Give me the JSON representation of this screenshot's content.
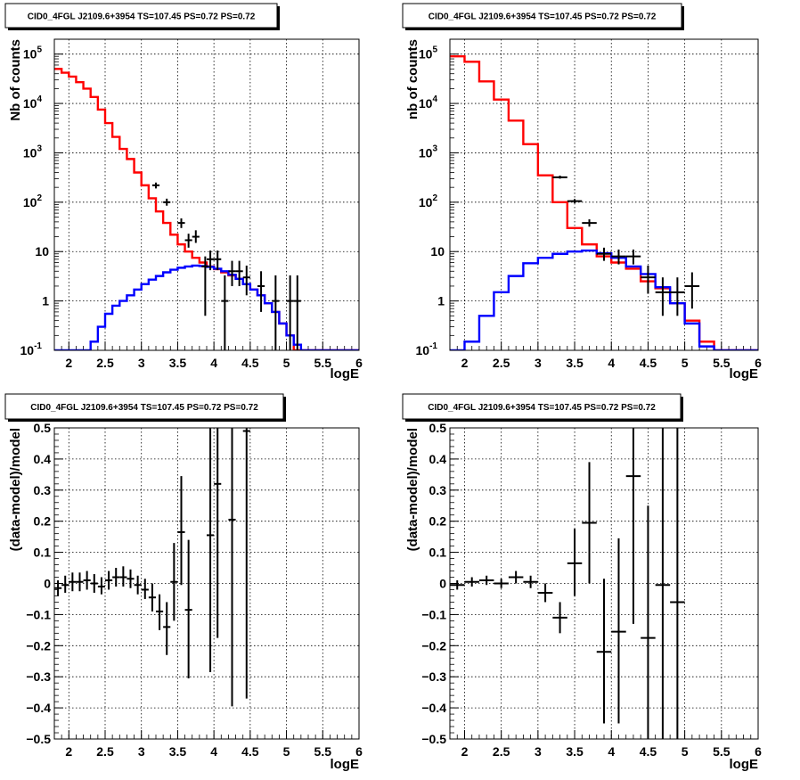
{
  "chart_data": [
    {
      "type": "line",
      "title": "CID0_4FGL J2109.6+3954 TS=107.45 PS=0.72 PS=0.72",
      "xlabel": "logE",
      "ylabel": "Nb of counts",
      "xlim": [
        1.8,
        6
      ],
      "ylim": [
        0.1,
        200000
      ],
      "ylog": true,
      "grid": true,
      "xticks": [
        "2",
        "2.5",
        "3",
        "3.5",
        "4",
        "4.5",
        "5",
        "5.5",
        "6"
      ],
      "yticks": [
        "10^-1",
        "1",
        "10",
        "10^2",
        "10^3",
        "10^4",
        "10^5"
      ],
      "bin_edges": [
        1.8,
        1.9,
        2.0,
        2.1,
        2.2,
        2.3,
        2.4,
        2.5,
        2.6,
        2.7,
        2.8,
        2.9,
        3.0,
        3.1,
        3.2,
        3.3,
        3.4,
        3.5,
        3.6,
        3.7,
        3.8,
        3.9,
        4.0,
        4.1,
        4.2,
        4.3,
        4.4,
        4.5,
        4.6,
        4.7,
        4.8,
        4.9,
        5.0,
        5.1,
        5.2,
        5.3,
        5.4,
        5.5,
        5.6,
        5.7,
        5.8,
        5.9,
        6.0
      ],
      "series": [
        {
          "color": "#ff0000",
          "style": "step",
          "values": [
            50000,
            42000,
            35000,
            27000,
            20000,
            13500,
            7500,
            4000,
            2100,
            1200,
            750,
            400,
            220,
            120,
            65,
            38,
            22,
            14,
            10,
            7.5,
            6,
            5,
            4.4,
            3.8,
            3.3,
            2.8,
            2.2,
            1.7,
            1.3,
            0.9,
            0.6,
            0.35,
            0.2,
            0.1,
            0.1,
            0.1,
            0.1,
            0.1,
            0.1,
            0.1,
            0.1,
            0.1
          ]
        },
        {
          "color": "#0000ff",
          "style": "step",
          "values": [
            0.1,
            0.1,
            0.1,
            0.1,
            0.1,
            0.15,
            0.3,
            0.55,
            0.8,
            1.0,
            1.3,
            1.7,
            2.2,
            2.7,
            3.2,
            3.8,
            4.3,
            4.7,
            5.0,
            5.2,
            5.1,
            4.9,
            4.5,
            4.0,
            3.4,
            2.8,
            2.2,
            1.7,
            1.3,
            0.9,
            0.6,
            0.35,
            0.2,
            0.13,
            0.1,
            0.1,
            0.1,
            0.1,
            0.1,
            0.1,
            0.1,
            0.1
          ]
        },
        {
          "color": "#000000",
          "style": "errorbar",
          "points": [
            {
              "x": 3.2,
              "y": 220,
              "lo": 190,
              "hi": 250,
              "xw": 0.05
            },
            {
              "x": 3.35,
              "y": 100,
              "lo": 85,
              "hi": 118,
              "xw": 0.05
            },
            {
              "x": 3.55,
              "y": 38,
              "lo": 30,
              "hi": 47,
              "xw": 0.05
            },
            {
              "x": 3.65,
              "y": 17,
              "lo": 12,
              "hi": 23,
              "xw": 0.05
            },
            {
              "x": 3.75,
              "y": 20,
              "lo": 15,
              "hi": 27,
              "xw": 0.05
            },
            {
              "x": 3.95,
              "y": 7,
              "lo": 4.2,
              "hi": 10.5,
              "xw": 0.05
            },
            {
              "x": 4.05,
              "y": 7,
              "lo": 4.2,
              "hi": 10.5,
              "xw": 0.05
            },
            {
              "x": 3.88,
              "y": 5,
              "lo": 0.5,
              "hi": 8,
              "xw": 0.05
            },
            {
              "x": 4.15,
              "y": 1,
              "lo": 0.1,
              "hi": 3.3,
              "xw": 0.05
            },
            {
              "x": 4.25,
              "y": 4,
              "lo": 2,
              "hi": 6.5,
              "xw": 0.05
            },
            {
              "x": 4.35,
              "y": 4,
              "lo": 2,
              "hi": 6.5,
              "xw": 0.05
            },
            {
              "x": 4.45,
              "y": 3,
              "lo": 1.3,
              "hi": 5.2,
              "xw": 0.05
            },
            {
              "x": 4.65,
              "y": 2,
              "lo": 0.6,
              "hi": 4,
              "xw": 0.05
            },
            {
              "x": 4.85,
              "y": 1,
              "lo": 0.1,
              "hi": 3.3,
              "xw": 0.05
            },
            {
              "x": 5.05,
              "y": 1,
              "lo": 0.1,
              "hi": 3.3,
              "xw": 0.05
            },
            {
              "x": 5.15,
              "y": 1,
              "lo": 0.1,
              "hi": 3.3,
              "xw": 0.05
            }
          ]
        }
      ]
    },
    {
      "type": "line",
      "title": "CID0_4FGL J2109.6+3954 TS=107.45 PS=0.72 PS=0.72",
      "xlabel": "logE",
      "ylabel": "nb of counts",
      "xlim": [
        1.8,
        6
      ],
      "ylim": [
        0.1,
        200000
      ],
      "ylog": true,
      "grid": true,
      "xticks": [
        "2",
        "2.5",
        "3",
        "3.5",
        "4",
        "4.5",
        "5",
        "5.5",
        "6"
      ],
      "yticks": [
        "10^-1",
        "1",
        "10",
        "10^2",
        "10^3",
        "10^4",
        "10^5"
      ],
      "bin_edges": [
        1.8,
        2.0,
        2.2,
        2.4,
        2.6,
        2.8,
        3.0,
        3.2,
        3.4,
        3.6,
        3.8,
        4.0,
        4.2,
        4.4,
        4.6,
        4.8,
        5.0,
        5.2,
        5.4,
        5.6,
        5.8,
        6.0
      ],
      "series": [
        {
          "color": "#ff0000",
          "style": "step",
          "values": [
            90000,
            70000,
            28000,
            12000,
            4500,
            1500,
            350,
            100,
            30,
            14,
            8,
            6,
            4.5,
            2.5,
            1.8,
            0.9,
            0.4,
            0.15,
            0.1,
            0.1,
            0.1
          ]
        },
        {
          "color": "#0000ff",
          "style": "step",
          "values": [
            0.1,
            0.15,
            0.5,
            1.5,
            3.2,
            5.8,
            7.5,
            9,
            10,
            10.5,
            9.2,
            7.5,
            5,
            3.5,
            1.9,
            0.9,
            0.35,
            0.12,
            0.1,
            0.1,
            0.1
          ]
        },
        {
          "color": "#000000",
          "style": "errorbar",
          "points": [
            {
              "x": 3.3,
              "y": 320,
              "lo": 300,
              "hi": 345,
              "xw": 0.1
            },
            {
              "x": 3.5,
              "y": 105,
              "lo": 95,
              "hi": 116,
              "xw": 0.1
            },
            {
              "x": 3.7,
              "y": 38,
              "lo": 32,
              "hi": 45,
              "xw": 0.1
            },
            {
              "x": 3.9,
              "y": 9,
              "lo": 6.5,
              "hi": 12,
              "xw": 0.1
            },
            {
              "x": 4.1,
              "y": 8,
              "lo": 5.5,
              "hi": 11,
              "xw": 0.1
            },
            {
              "x": 4.3,
              "y": 8,
              "lo": 5.5,
              "hi": 11,
              "xw": 0.1
            },
            {
              "x": 4.5,
              "y": 3,
              "lo": 1.4,
              "hi": 5.2,
              "xw": 0.1
            },
            {
              "x": 4.7,
              "y": 1.5,
              "lo": 0.5,
              "hi": 3,
              "xw": 0.1
            },
            {
              "x": 4.9,
              "y": 1.5,
              "lo": 0.5,
              "hi": 3,
              "xw": 0.1
            },
            {
              "x": 5.1,
              "y": 2,
              "lo": 0.7,
              "hi": 3.8,
              "xw": 0.1
            }
          ]
        }
      ]
    },
    {
      "type": "scatter",
      "title": "CID0_4FGL J2109.6+3954 TS=107.45 PS=0.72 PS=0.72",
      "xlabel": "logE",
      "ylabel": "(data-model)/model",
      "xlim": [
        1.8,
        6
      ],
      "ylim": [
        -0.5,
        0.5
      ],
      "ylog": false,
      "grid": true,
      "xticks": [
        "2",
        "2.5",
        "3",
        "3.5",
        "4",
        "4.5",
        "5",
        "5.5",
        "6"
      ],
      "yticks": [
        "−0.5",
        "−0.4",
        "−0.3",
        "−0.2",
        "−0.1",
        "0",
        "0.1",
        "0.2",
        "0.3",
        "0.4",
        "0.5"
      ],
      "series": [
        {
          "color": "#000000",
          "style": "errorbar",
          "points": [
            {
              "x": 1.85,
              "y": -0.015,
              "lo": -0.04,
              "hi": 0.01,
              "xw": 0.05
            },
            {
              "x": 1.95,
              "y": -0.005,
              "lo": -0.03,
              "hi": 0.025,
              "xw": 0.05
            },
            {
              "x": 2.05,
              "y": 0.005,
              "lo": -0.025,
              "hi": 0.035,
              "xw": 0.05
            },
            {
              "x": 2.15,
              "y": 0.005,
              "lo": -0.025,
              "hi": 0.035,
              "xw": 0.05
            },
            {
              "x": 2.25,
              "y": 0.01,
              "lo": -0.02,
              "hi": 0.04,
              "xw": 0.05
            },
            {
              "x": 2.35,
              "y": 0.0,
              "lo": -0.03,
              "hi": 0.03,
              "xw": 0.05
            },
            {
              "x": 2.45,
              "y": -0.01,
              "lo": -0.035,
              "hi": 0.02,
              "xw": 0.05
            },
            {
              "x": 2.55,
              "y": 0.01,
              "lo": -0.02,
              "hi": 0.04,
              "xw": 0.05
            },
            {
              "x": 2.65,
              "y": 0.02,
              "lo": -0.01,
              "hi": 0.05,
              "xw": 0.05
            },
            {
              "x": 2.75,
              "y": 0.02,
              "lo": -0.01,
              "hi": 0.055,
              "xw": 0.05
            },
            {
              "x": 2.85,
              "y": 0.015,
              "lo": -0.015,
              "hi": 0.045,
              "xw": 0.05
            },
            {
              "x": 2.95,
              "y": -0.005,
              "lo": -0.035,
              "hi": 0.025,
              "xw": 0.05
            },
            {
              "x": 3.05,
              "y": -0.02,
              "lo": -0.05,
              "hi": 0.015,
              "xw": 0.05
            },
            {
              "x": 3.15,
              "y": -0.045,
              "lo": -0.09,
              "hi": 0.0,
              "xw": 0.05
            },
            {
              "x": 3.25,
              "y": -0.09,
              "lo": -0.15,
              "hi": -0.035,
              "xw": 0.05
            },
            {
              "x": 3.35,
              "y": -0.14,
              "lo": -0.23,
              "hi": -0.06,
              "xw": 0.05
            },
            {
              "x": 3.45,
              "y": 0.005,
              "lo": -0.12,
              "hi": 0.13,
              "xw": 0.05
            },
            {
              "x": 3.55,
              "y": 0.165,
              "lo": -0.005,
              "hi": 0.345,
              "xw": 0.05
            },
            {
              "x": 3.65,
              "y": -0.085,
              "lo": -0.305,
              "hi": 0.14,
              "xw": 0.05
            },
            {
              "x": 3.95,
              "y": 0.155,
              "lo": -0.285,
              "hi": 0.6,
              "xw": 0.05
            },
            {
              "x": 4.05,
              "y": 0.32,
              "lo": -0.175,
              "hi": 0.8,
              "xw": 0.05
            },
            {
              "x": 4.25,
              "y": 0.205,
              "lo": -0.395,
              "hi": 0.8,
              "xw": 0.05
            },
            {
              "x": 4.45,
              "y": 0.49,
              "lo": -0.37,
              "hi": 1.3,
              "xw": 0.05
            }
          ]
        }
      ]
    },
    {
      "type": "scatter",
      "title": "CID0_4FGL J2109.6+3954 TS=107.45 PS=0.72 PS=0.72",
      "xlabel": "logE",
      "ylabel": "(data-model)/model",
      "xlim": [
        1.8,
        6
      ],
      "ylim": [
        -0.5,
        0.5
      ],
      "ylog": false,
      "grid": true,
      "xticks": [
        "2",
        "2.5",
        "3",
        "3.5",
        "4",
        "4.5",
        "5",
        "5.5",
        "6"
      ],
      "yticks": [
        "−0.5",
        "−0.4",
        "−0.3",
        "−0.2",
        "−0.1",
        "0",
        "0.1",
        "0.2",
        "0.3",
        "0.4",
        "0.5"
      ],
      "series": [
        {
          "color": "#000000",
          "style": "errorbar",
          "points": [
            {
              "x": 1.9,
              "y": -0.005,
              "lo": -0.02,
              "hi": 0.01,
              "xw": 0.1
            },
            {
              "x": 2.1,
              "y": 0.005,
              "lo": -0.01,
              "hi": 0.02,
              "xw": 0.1
            },
            {
              "x": 2.3,
              "y": 0.01,
              "lo": -0.005,
              "hi": 0.025,
              "xw": 0.1
            },
            {
              "x": 2.5,
              "y": 0.0,
              "lo": -0.015,
              "hi": 0.015,
              "xw": 0.1
            },
            {
              "x": 2.7,
              "y": 0.02,
              "lo": 0.0,
              "hi": 0.04,
              "xw": 0.1
            },
            {
              "x": 2.9,
              "y": 0.005,
              "lo": -0.015,
              "hi": 0.025,
              "xw": 0.1
            },
            {
              "x": 3.1,
              "y": -0.03,
              "lo": -0.06,
              "hi": 0.0,
              "xw": 0.1
            },
            {
              "x": 3.3,
              "y": -0.11,
              "lo": -0.16,
              "hi": -0.06,
              "xw": 0.1
            },
            {
              "x": 3.5,
              "y": 0.065,
              "lo": -0.04,
              "hi": 0.175,
              "xw": 0.1
            },
            {
              "x": 3.7,
              "y": 0.195,
              "lo": 0.0,
              "hi": 0.39,
              "xw": 0.1
            },
            {
              "x": 3.9,
              "y": -0.22,
              "lo": -0.45,
              "hi": 0.015,
              "xw": 0.1
            },
            {
              "x": 4.1,
              "y": -0.155,
              "lo": -0.45,
              "hi": 0.145,
              "xw": 0.1
            },
            {
              "x": 4.3,
              "y": 0.345,
              "lo": -0.13,
              "hi": 0.82,
              "xw": 0.1
            },
            {
              "x": 4.5,
              "y": -0.175,
              "lo": -0.6,
              "hi": 0.25,
              "xw": 0.1
            },
            {
              "x": 4.7,
              "y": -0.005,
              "lo": -0.9,
              "hi": 0.9,
              "xw": 0.1
            },
            {
              "x": 4.9,
              "y": -0.06,
              "lo": -0.9,
              "hi": 0.9,
              "xw": 0.1
            }
          ]
        }
      ]
    }
  ]
}
